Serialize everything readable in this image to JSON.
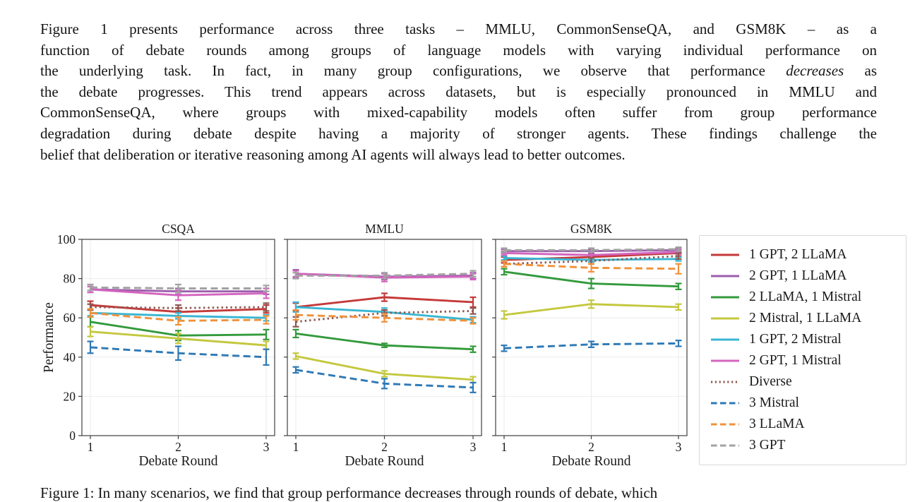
{
  "paragraph": {
    "lines": [
      {
        "text": "Figure 1 presents performance across three tasks – MMLU, CommonSenseQA, and GSM8K – as a"
      },
      {
        "text": "function of debate rounds among groups of language models with varying individual performance on"
      },
      {
        "pre": "the underlying task. In fact, in many group configurations, we observe that performance ",
        "em": "decreases",
        "post": " as"
      },
      {
        "text": "the debate progresses. This trend appears across datasets, but is especially pronounced in MMLU and"
      },
      {
        "text": "CommonSenseQA, where groups with mixed-capability models often suffer from group performance"
      },
      {
        "text": "degradation during debate despite having a majority of stronger agents. These findings challenge the"
      },
      {
        "text": "belief that deliberation or iterative reasoning among AI agents will always lead to better outcomes."
      }
    ]
  },
  "caption_fragment": "Figure 1: In many scenarios, we find that group performance decreases through rounds of debate, which",
  "chart_data": {
    "type": "line",
    "x": [
      1,
      2,
      3
    ],
    "xlabel": "Debate Round",
    "ylabel": "Performance",
    "ylim": [
      0,
      100
    ],
    "yticks": [
      0,
      20,
      40,
      60,
      80,
      100
    ],
    "grid": true,
    "error_bars": true,
    "legend_position": "right of axes",
    "series_styles": [
      {
        "name": "1 GPT, 2 LLaMA",
        "color": "#c43a39",
        "style": "solid"
      },
      {
        "name": "2 GPT, 1 LLaMA",
        "color": "#9d5ead",
        "style": "solid"
      },
      {
        "name": "2 LLaMA, 1 Mistral",
        "color": "#339a3c",
        "style": "solid"
      },
      {
        "name": "2 Mistral, 1 LLaMA",
        "color": "#c4c83e",
        "style": "solid"
      },
      {
        "name": "1 GPT, 2 Mistral",
        "color": "#38b6d3",
        "style": "solid"
      },
      {
        "name": "2 GPT, 1 Mistral",
        "color": "#d464be",
        "style": "solid"
      },
      {
        "name": "Diverse",
        "color": "#8d5852",
        "style": "dotted"
      },
      {
        "name": "3 Mistral",
        "color": "#2e79b5",
        "style": "dashed"
      },
      {
        "name": "3 LLaMA",
        "color": "#f0913b",
        "style": "dashed"
      },
      {
        "name": "3 GPT",
        "color": "#a2a2a2",
        "style": "dashed"
      }
    ],
    "panels": [
      {
        "title": "CSQA",
        "series": [
          {
            "name": "1 GPT, 2 LLaMA",
            "values": [
              66.5,
              63.0,
              64.5
            ],
            "err": [
              2.0,
              2.0,
              2.0
            ]
          },
          {
            "name": "2 GPT, 1 LLaMA",
            "values": [
              74.5,
              73.5,
              73.5
            ],
            "err": [
              1.5,
              1.5,
              1.5
            ]
          },
          {
            "name": "2 LLaMA, 1 Mistral",
            "values": [
              58.0,
              51.0,
              51.5
            ],
            "err": [
              2.5,
              2.5,
              2.5
            ]
          },
          {
            "name": "2 Mistral, 1 LLaMA",
            "values": [
              53.0,
              49.5,
              46.0
            ],
            "err": [
              2.5,
              2.5,
              2.0
            ]
          },
          {
            "name": "1 GPT, 2 Mistral",
            "values": [
              62.5,
              61.0,
              60.0
            ],
            "err": [
              1.5,
              1.5,
              1.5
            ]
          },
          {
            "name": "2 GPT, 1 Mistral",
            "values": [
              74.5,
              71.5,
              72.5
            ],
            "err": [
              1.5,
              2.5,
              2.5
            ]
          },
          {
            "name": "Diverse",
            "values": [
              65.5,
              65.0,
              65.5
            ],
            "err": [
              1.5,
              1.5,
              2.0
            ]
          },
          {
            "name": "3 Mistral",
            "values": [
              45.0,
              42.0,
              40.0
            ],
            "err": [
              3.0,
              3.5,
              4.0
            ]
          },
          {
            "name": "3 LLaMA",
            "values": [
              62.5,
              58.5,
              59.0
            ],
            "err": [
              2.0,
              2.0,
              2.0
            ]
          },
          {
            "name": "3 GPT",
            "values": [
              75.5,
              75.0,
              75.0
            ],
            "err": [
              1.5,
              2.0,
              1.5
            ]
          }
        ]
      },
      {
        "title": "MMLU",
        "series": [
          {
            "name": "1 GPT, 2 LLaMA",
            "values": [
              65.5,
              70.5,
              68.0
            ],
            "err": [
              2.0,
              2.0,
              2.5
            ]
          },
          {
            "name": "2 GPT, 1 LLaMA",
            "values": [
              82.5,
              81.0,
              81.5
            ],
            "err": [
              2.0,
              1.5,
              1.5
            ]
          },
          {
            "name": "2 LLaMA, 1 Mistral",
            "values": [
              52.0,
              46.0,
              44.0
            ],
            "err": [
              2.0,
              1.0,
              1.5
            ]
          },
          {
            "name": "2 Mistral, 1 LLaMA",
            "values": [
              40.5,
              31.5,
              28.5
            ],
            "err": [
              1.5,
              1.5,
              1.5
            ]
          },
          {
            "name": "1 GPT, 2 Mistral",
            "values": [
              65.5,
              63.0,
              59.0
            ],
            "err": [
              2.5,
              2.0,
              1.5
            ]
          },
          {
            "name": "2 GPT, 1 Mistral",
            "values": [
              82.5,
              80.5,
              81.0
            ],
            "err": [
              1.5,
              2.0,
              1.5
            ]
          },
          {
            "name": "Diverse",
            "values": [
              58.0,
              62.5,
              63.5
            ],
            "err": [
              2.5,
              1.5,
              1.5
            ]
          },
          {
            "name": "3 Mistral",
            "values": [
              33.5,
              26.5,
              24.5
            ],
            "err": [
              1.5,
              2.5,
              2.5
            ]
          },
          {
            "name": "3 LLaMA",
            "values": [
              61.5,
              60.0,
              58.5
            ],
            "err": [
              2.5,
              2.0,
              1.5
            ]
          },
          {
            "name": "3 GPT",
            "values": [
              81.5,
              81.5,
              82.5
            ],
            "err": [
              1.5,
              1.5,
              1.5
            ]
          }
        ]
      },
      {
        "title": "GSM8K",
        "series": [
          {
            "name": "1 GPT, 2 LLaMA",
            "values": [
              89.5,
              91.0,
              93.0
            ],
            "err": [
              1.5,
              1.5,
              1.5
            ]
          },
          {
            "name": "2 GPT, 1 LLaMA",
            "values": [
              94.0,
              94.0,
              94.5
            ],
            "err": [
              1.0,
              1.0,
              1.0
            ]
          },
          {
            "name": "2 LLaMA, 1 Mistral",
            "values": [
              83.5,
              77.5,
              76.0
            ],
            "err": [
              1.5,
              2.5,
              1.5
            ]
          },
          {
            "name": "2 Mistral, 1 LLaMA",
            "values": [
              61.5,
              67.0,
              65.5
            ],
            "err": [
              2.0,
              2.0,
              1.5
            ]
          },
          {
            "name": "1 GPT, 2 Mistral",
            "values": [
              90.5,
              89.5,
              90.0
            ],
            "err": [
              1.0,
              1.0,
              1.0
            ]
          },
          {
            "name": "2 GPT, 1 Mistral",
            "values": [
              93.0,
              92.0,
              93.5
            ],
            "err": [
              1.0,
              1.5,
              1.0
            ]
          },
          {
            "name": "Diverse",
            "values": [
              87.5,
              89.0,
              91.5
            ],
            "err": [
              1.5,
              1.5,
              1.5
            ]
          },
          {
            "name": "3 Mistral",
            "values": [
              44.5,
              46.5,
              47.0
            ],
            "err": [
              1.5,
              1.5,
              1.5
            ]
          },
          {
            "name": "3 LLaMA",
            "values": [
              87.5,
              85.5,
              85.0
            ],
            "err": [
              1.5,
              2.0,
              2.5
            ]
          },
          {
            "name": "3 GPT",
            "values": [
              94.5,
              94.5,
              95.0
            ],
            "err": [
              1.0,
              1.0,
              1.0
            ]
          }
        ]
      }
    ]
  }
}
